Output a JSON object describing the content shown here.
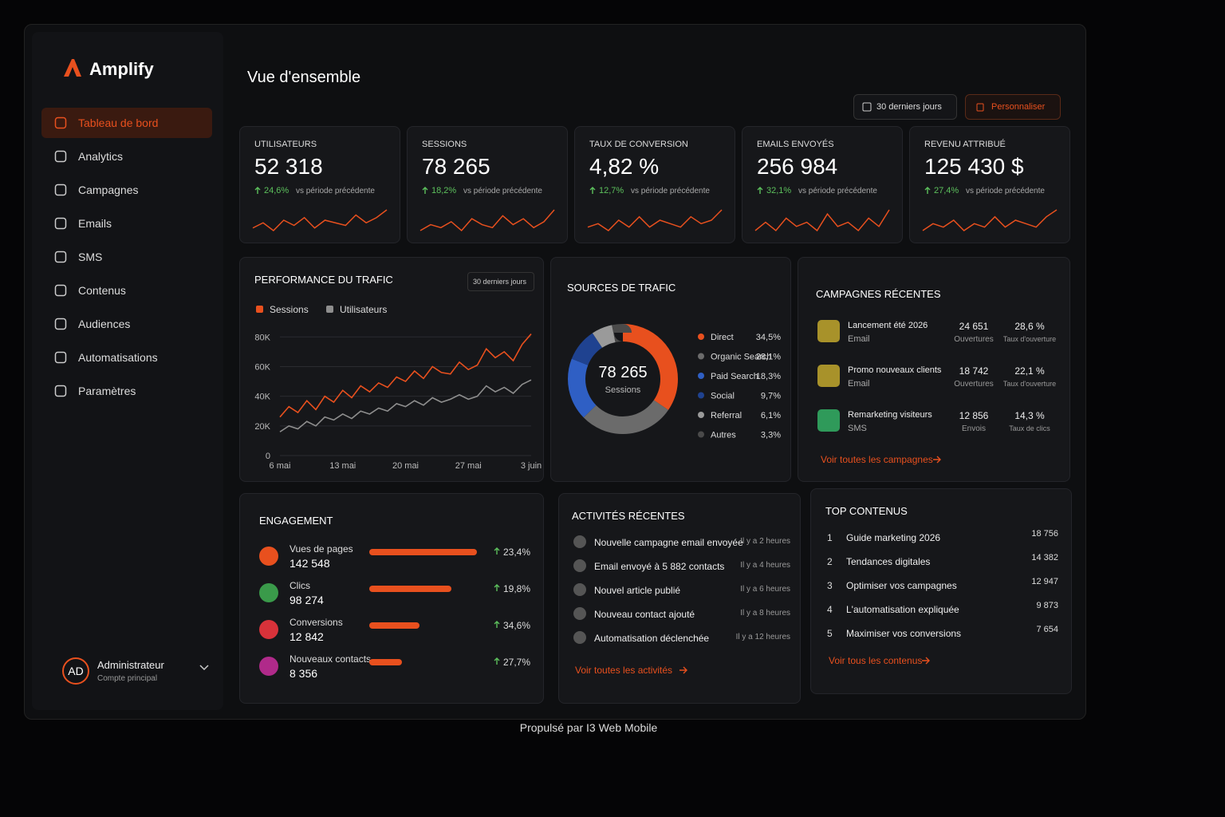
{
  "brand": "Amplify",
  "page_title": "Vue d'ensemble",
  "nav": [
    "Tableau de bord",
    "Analytics",
    "Campagnes",
    "Emails",
    "SMS",
    "Contenus",
    "Audiences",
    "Automatisations",
    "Paramètres"
  ],
  "user": {
    "initials": "AD",
    "name": "Administrateur",
    "role": "Compte principal"
  },
  "controls": {
    "period": "30 derniers jours",
    "customize": "Personnaliser"
  },
  "kpis": [
    {
      "label": "UTILISATEURS",
      "value": "52 318",
      "change": "24,6%",
      "note": "vs période précédente",
      "spark": [
        12,
        14,
        11,
        15,
        13,
        16,
        12,
        15,
        14,
        13,
        17,
        14,
        16,
        19
      ]
    },
    {
      "label": "SESSIONS",
      "value": "78 265",
      "change": "18,2%",
      "note": "vs période précédente",
      "spark": [
        11,
        13,
        12,
        14,
        11,
        15,
        13,
        12,
        16,
        13,
        15,
        12,
        14,
        18
      ]
    },
    {
      "label": "TAUX DE CONVERSION",
      "value": "4,82 %",
      "change": "12,7%",
      "note": "vs période précédente",
      "spark": [
        12,
        13,
        11,
        14,
        12,
        15,
        12,
        14,
        13,
        12,
        15,
        13,
        14,
        17
      ]
    },
    {
      "label": "EMAILS ENVOYÉS",
      "value": "256 984",
      "change": "32,1%",
      "note": "vs période précédente",
      "spark": [
        12,
        14,
        12,
        15,
        13,
        14,
        12,
        16,
        13,
        14,
        12,
        15,
        13,
        17
      ]
    },
    {
      "label": "REVENU ATTRIBUÉ",
      "value": "125 430 $",
      "change": "27,4%",
      "note": "vs période précédente",
      "spark": [
        12,
        14,
        13,
        15,
        12,
        14,
        13,
        16,
        13,
        15,
        14,
        13,
        16,
        18
      ]
    }
  ],
  "traffic": {
    "type": "line",
    "title": "PERFORMANCE DU TRAFIC",
    "period": "30 derniers jours",
    "x": [
      "6 mai",
      null,
      null,
      null,
      null,
      null,
      null,
      "13 mai",
      null,
      null,
      null,
      null,
      null,
      null,
      "20 mai",
      null,
      null,
      null,
      null,
      null,
      null,
      "27 mai",
      null,
      null,
      null,
      null,
      null,
      null,
      "3 juin"
    ],
    "series": [
      {
        "name": "Sessions",
        "color": "#e8501e",
        "values": [
          26000,
          33000,
          29000,
          37000,
          31000,
          40000,
          36000,
          44000,
          39000,
          47000,
          43000,
          49000,
          46000,
          53000,
          50000,
          57000,
          52000,
          60000,
          56000,
          55000,
          63000,
          58000,
          61000,
          72000,
          66000,
          70000,
          64000,
          75000,
          82000
        ]
      },
      {
        "name": "Utilisateurs",
        "color": "#8e8e8e",
        "values": [
          16000,
          20000,
          18000,
          23000,
          20000,
          26000,
          24000,
          28000,
          25000,
          30000,
          28000,
          32000,
          30000,
          35000,
          33000,
          37000,
          34000,
          39000,
          36000,
          38000,
          41000,
          38000,
          40000,
          47000,
          43000,
          46000,
          42000,
          48000,
          51000
        ]
      }
    ],
    "ylim": [
      0,
      85000
    ],
    "yticks": [
      0,
      {
        "value": 20000,
        "label": "20K"
      },
      {
        "value": 40000,
        "label": "40K"
      },
      {
        "value": 60000,
        "label": "60K"
      },
      {
        "value": 80000,
        "label": "80K"
      }
    ],
    "grid": true
  },
  "sources": {
    "type": "pie",
    "title": "SOURCES DE TRAFIC",
    "center_value": "78 265",
    "center_label": "Sessions",
    "categories": [
      "Direct",
      "Organic Search",
      "Paid Search",
      "Social",
      "Referral",
      "Autres"
    ],
    "values": [
      34.5,
      28.1,
      18.3,
      9.7,
      6.1,
      3.3
    ],
    "value_labels": [
      "34,5%",
      "28,1%",
      "18,3%",
      "9,7%",
      "6,1%",
      "3,3%"
    ],
    "colors": [
      "#e8501e",
      "#6b6b6b",
      "#2f5fc4",
      "#1f4290",
      "#9a9a9a",
      "#4a4a4a"
    ]
  },
  "campaigns": {
    "title": "CAMPAGNES RÉCENTES",
    "rows": [
      {
        "name": "Lancement été 2026",
        "channel": "Email",
        "m1": "24 651",
        "m1_label": "Ouvertures",
        "m2": "28,6 %",
        "m2_label": "Taux d'ouverture",
        "color": "#a8922a"
      },
      {
        "name": "Promo nouveaux clients",
        "channel": "Email",
        "m1": "18 742",
        "m1_label": "Ouvertures",
        "m2": "22,1 %",
        "m2_label": "Taux d'ouverture",
        "color": "#a8922a"
      },
      {
        "name": "Remarketing visiteurs",
        "channel": "SMS",
        "m1": "12 856",
        "m1_label": "Envois",
        "m2": "14,3 %",
        "m2_label": "Taux de clics",
        "color": "#2f9a5a"
      }
    ],
    "link": "Voir toutes les campagnes"
  },
  "engagement": {
    "title": "ENGAGEMENT",
    "rows": [
      {
        "label": "Vues de pages",
        "value": "142 548",
        "change": "23,4%",
        "bar": 100,
        "color": "#e8501e"
      },
      {
        "label": "Clics",
        "value": "98 274",
        "change": "19,8%",
        "bar": 76,
        "color": "#3a9a4a"
      },
      {
        "label": "Conversions",
        "value": "12 842",
        "change": "34,6%",
        "bar": 47,
        "color": "#d8323a"
      },
      {
        "label": "Nouveaux contacts",
        "value": "8 356",
        "change": "27,7%",
        "bar": 30,
        "color": "#b02a8a"
      }
    ]
  },
  "activities": {
    "title": "ACTIVITÉS RÉCENTES",
    "rows": [
      {
        "text": "Nouvelle campagne email envoyée",
        "time": "Il y a 2 heures"
      },
      {
        "text": "Email envoyé à 5 882 contacts",
        "time": "Il y a 4 heures"
      },
      {
        "text": "Nouvel article publié",
        "time": "Il y a 6 heures"
      },
      {
        "text": "Nouveau contact ajouté",
        "time": "Il y a 8 heures"
      },
      {
        "text": "Automatisation déclenchée",
        "time": "Il y a 12 heures"
      }
    ],
    "link": "Voir toutes les activités"
  },
  "top_contents": {
    "title": "TOP CONTENUS",
    "rows": [
      {
        "rank": 1,
        "title": "Guide marketing 2026",
        "value": "18 756"
      },
      {
        "rank": 2,
        "title": "Tendances digitales",
        "value": "14 382"
      },
      {
        "rank": 3,
        "title": "Optimiser vos campagnes",
        "value": "12 947"
      },
      {
        "rank": 4,
        "title": "L'automatisation expliquée",
        "value": "9 873"
      },
      {
        "rank": 5,
        "title": "Maximiser vos conversions",
        "value": "7 654"
      }
    ],
    "link": "Voir tous les contenus"
  },
  "footer": "Propulsé par I3 Web Mobile"
}
